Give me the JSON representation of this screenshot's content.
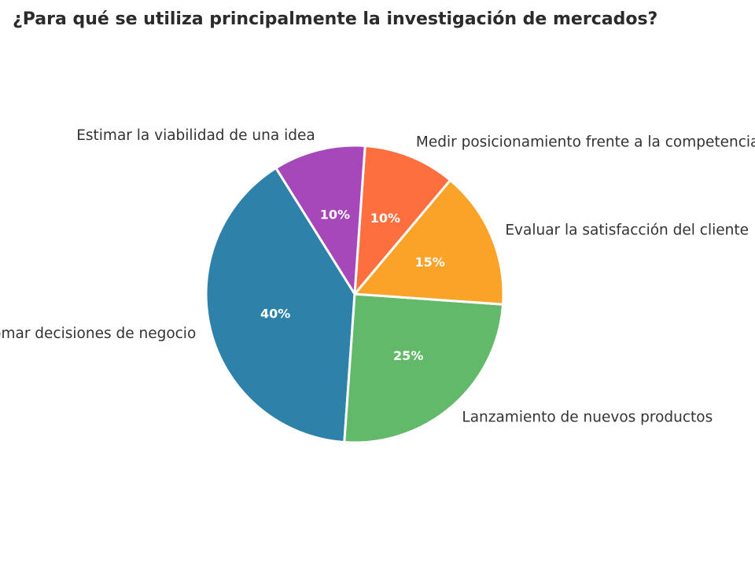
{
  "chart_data": {
    "type": "pie",
    "title": "¿Para qué se utiliza principalmente la investigación de mercados?",
    "categories": [
      "Tomar decisiones de negocio",
      "Lanzamiento de nuevos productos",
      "Evaluar la satisfacción del cliente",
      "Medir posicionamiento frente a la competencia",
      "Estimar la viabilidad de una idea"
    ],
    "values": [
      40,
      25,
      15,
      10,
      10
    ],
    "value_labels": [
      "40%",
      "25%",
      "15%",
      "10%",
      "10%"
    ],
    "colors": [
      "#2e81a9",
      "#63b96a",
      "#fba329",
      "#fe6f40",
      "#a647ba"
    ],
    "start_angle_deg": 122,
    "direction": "counterclockwise",
    "legend": "none"
  }
}
